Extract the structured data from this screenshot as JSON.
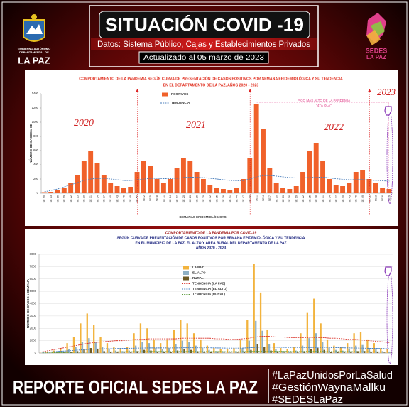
{
  "header": {
    "title": "SITUACIÓN COVID -19",
    "subtitle": "Datos: Sistema Público, Cajas y Establecimientos Privados",
    "updated": "Actualizado al 05 marzo de 2023",
    "left_logo": [
      "GOBIERNO AUTÓNOMO",
      "DEPARTAMENTAL DE",
      "LA PAZ"
    ],
    "right_logo": [
      "SEDES",
      "LA PAZ"
    ]
  },
  "chart_data": [
    {
      "type": "bar",
      "title": "COMPORTAMIENTO DE LA PANDEMIA SEGÚN CURVA DE PRESENTACIÓN DE CASOS POSITIVOS POR SEMANA EPIDEMIOLÓGICA Y SU TENDENCIA",
      "subtitle": [
        "EN EL DEPARTAMENTO DE LA PAZ, AÑOS 2020 - 2023"
      ],
      "ylabel": "NÚMERO DE CASOS x SE",
      "xlabel": "SEMANAS EPIDEMIOLÓGICAS",
      "ylim": [
        0,
        1400
      ],
      "yticks": [
        0,
        200,
        400,
        600,
        800,
        1000,
        1200,
        1400
      ],
      "grid": false,
      "annotations": [
        "2020",
        "2021",
        "2022",
        "2023",
        "PICO MÁS ALTO DE LA PANDEMIA",
        "\"4TA OLA\""
      ],
      "categories": [
        "SE 10",
        "SE 13",
        "SE 16",
        "SE 19",
        "SE 22",
        "SE 25",
        "SE 28",
        "SE 31",
        "SE 34",
        "SE 37",
        "SE 40",
        "SE 43",
        "SE 46",
        "SE 49",
        "SE 52",
        "SE 2",
        "SE 5",
        "SE 8",
        "SE 11",
        "SE 14",
        "SE 17",
        "SE 20",
        "SE 23",
        "SE 26",
        "SE 29",
        "SE 32",
        "SE 35",
        "SE 38",
        "SE 41",
        "SE 44",
        "SE 47",
        "SE 50",
        "SE 1",
        "SE 4",
        "SE 7",
        "SE 10",
        "SE 13",
        "SE 16",
        "SE 19",
        "SE 22",
        "SE 25",
        "SE 28",
        "SE 31",
        "SE 34",
        "SE 37",
        "SE 40",
        "SE 43",
        "SE 46",
        "SE 49",
        "SE 52",
        "SE 3",
        "SE 6",
        "SE 9"
      ],
      "series": [
        {
          "name": "POSITIVOS",
          "type": "bar",
          "color": "#f0612a",
          "values": [
            5,
            20,
            40,
            80,
            150,
            250,
            450,
            600,
            420,
            250,
            150,
            100,
            80,
            90,
            300,
            450,
            380,
            200,
            150,
            200,
            350,
            500,
            450,
            300,
            200,
            120,
            80,
            60,
            50,
            80,
            200,
            500,
            1250,
            900,
            350,
            150,
            80,
            60,
            100,
            300,
            600,
            700,
            450,
            200,
            120,
            100,
            150,
            300,
            320,
            200,
            150,
            80,
            60
          ]
        },
        {
          "name": "TENDENCIA",
          "type": "line",
          "color": "#4a7ebb",
          "values": [
            20,
            40,
            60,
            90,
            120,
            150,
            180,
            200,
            210,
            210,
            200,
            190,
            180,
            180,
            190,
            200,
            210,
            210,
            205,
            205,
            210,
            220,
            225,
            225,
            220,
            210,
            200,
            190,
            180,
            175,
            180,
            200,
            230,
            250,
            250,
            240,
            230,
            220,
            215,
            215,
            220,
            225,
            225,
            215,
            205,
            195,
            190,
            190,
            190,
            185,
            180,
            175,
            170
          ]
        }
      ]
    },
    {
      "type": "bar",
      "title": "COMPORTAMIENTO DE LA PANDEMIA POR COVID-19",
      "subtitle": [
        "SEGÚN CURVA DE PRESENTACIÓN DE CASOS POSITIVOS POR SEMANA EPIDEMIOLÓGICA Y SU TENDENCIA",
        "EN EL  MUNICIPIO DE LA PAZ, EL ALTO Y ÁREA RURAL DEL DEPARTAMENTO DE LA PAZ",
        "AÑOS 2020 - 2023"
      ],
      "ylabel": "NÚMERO DE CASOS x SEMANA",
      "ylim": [
        0,
        8000
      ],
      "yticks": [
        0,
        1000,
        2000,
        3000,
        4000,
        5000,
        6000,
        7000,
        8000
      ],
      "grid": true,
      "categories": [
        null,
        null,
        null,
        null,
        null,
        null,
        null,
        null,
        null,
        null,
        null,
        null,
        null,
        null,
        null,
        null,
        null,
        null,
        null,
        null,
        null,
        null,
        null,
        null,
        null,
        null,
        null,
        null,
        null,
        null,
        null,
        null,
        null,
        null,
        null,
        null,
        null,
        null,
        null,
        null,
        null,
        null,
        null,
        null,
        null,
        null,
        null,
        null,
        null,
        null,
        null,
        null,
        null
      ],
      "series": [
        {
          "name": "LA PAZ",
          "type": "bar",
          "color": "#f2b33d",
          "values": [
            20,
            100,
            200,
            400,
            800,
            1300,
            2400,
            3200,
            2300,
            1300,
            800,
            500,
            400,
            500,
            1600,
            2400,
            2000,
            1100,
            800,
            1100,
            1900,
            2700,
            2400,
            1600,
            1100,
            600,
            400,
            300,
            300,
            400,
            1100,
            2700,
            7200,
            4900,
            1900,
            800,
            400,
            300,
            500,
            1600,
            3300,
            4400,
            2400,
            1100,
            600,
            500,
            800,
            1600,
            1700,
            1100,
            800,
            400,
            300
          ]
        },
        {
          "name": "EL ALTO",
          "type": "bar",
          "color": "#8fb0c4",
          "values": [
            10,
            40,
            80,
            150,
            300,
            500,
            900,
            1200,
            900,
            500,
            300,
            200,
            150,
            200,
            600,
            900,
            800,
            400,
            300,
            400,
            700,
            1000,
            900,
            600,
            400,
            250,
            150,
            120,
            120,
            150,
            400,
            1000,
            2600,
            1800,
            700,
            300,
            150,
            120,
            200,
            600,
            1200,
            1600,
            900,
            400,
            250,
            200,
            300,
            600,
            650,
            400,
            300,
            150,
            120
          ]
        },
        {
          "name": "RURAL",
          "type": "bar",
          "color": "#6e5a24",
          "values": [
            2,
            10,
            20,
            40,
            80,
            150,
            300,
            400,
            300,
            150,
            80,
            50,
            40,
            50,
            150,
            250,
            200,
            100,
            80,
            100,
            200,
            300,
            250,
            150,
            100,
            60,
            40,
            30,
            30,
            40,
            100,
            250,
            700,
            500,
            200,
            80,
            40,
            30,
            50,
            150,
            300,
            400,
            250,
            100,
            60,
            50,
            80,
            150,
            160,
            100,
            80,
            40,
            30
          ]
        },
        {
          "name": "TENDENCIA (LA PAZ)",
          "type": "line",
          "color": "#d9342b",
          "values": [
            100,
            200,
            300,
            400,
            500,
            600,
            700,
            800,
            850,
            900,
            950,
            1000,
            1000,
            1050,
            1100,
            1100,
            1150,
            1150,
            1150,
            1150,
            1150,
            1200,
            1200,
            1200,
            1200,
            1200,
            1150,
            1150,
            1100,
            1100,
            1150,
            1200,
            1300,
            1350,
            1350,
            1300,
            1300,
            1250,
            1250,
            1250,
            1250,
            1250,
            1250,
            1200,
            1200,
            1150,
            1100,
            1100,
            1050,
            1000,
            950,
            900,
            850
          ]
        },
        {
          "name": "TENDENCIA (EL ALTO)",
          "type": "line",
          "color": "#3a78c0",
          "values": [
            50,
            80,
            120,
            150,
            180,
            220,
            260,
            300,
            320,
            340,
            350,
            360,
            370,
            380,
            390,
            400,
            410,
            410,
            410,
            410,
            410,
            420,
            420,
            420,
            420,
            420,
            410,
            400,
            390,
            390,
            400,
            420,
            460,
            480,
            480,
            470,
            460,
            450,
            450,
            450,
            450,
            450,
            450,
            440,
            430,
            420,
            410,
            400,
            390,
            380,
            370,
            360,
            350
          ]
        },
        {
          "name": "TENDENCIA (RURAL)",
          "type": "line",
          "color": "#5a9a3a",
          "values": [
            10,
            20,
            30,
            40,
            50,
            60,
            70,
            80,
            85,
            90,
            95,
            100,
            100,
            105,
            110,
            110,
            115,
            115,
            115,
            115,
            115,
            120,
            120,
            120,
            120,
            120,
            115,
            115,
            110,
            110,
            115,
            120,
            130,
            135,
            135,
            130,
            130,
            125,
            125,
            125,
            125,
            125,
            125,
            120,
            120,
            115,
            110,
            110,
            105,
            100,
            95,
            90,
            85
          ]
        }
      ]
    }
  ],
  "footer": {
    "title": "REPORTE OFICIAL SEDES LA PAZ",
    "hashtags": [
      "#LaPazUnidosPorLaSalud",
      "#GestiónWaynaMallku",
      "#SEDESLaPaz"
    ]
  }
}
